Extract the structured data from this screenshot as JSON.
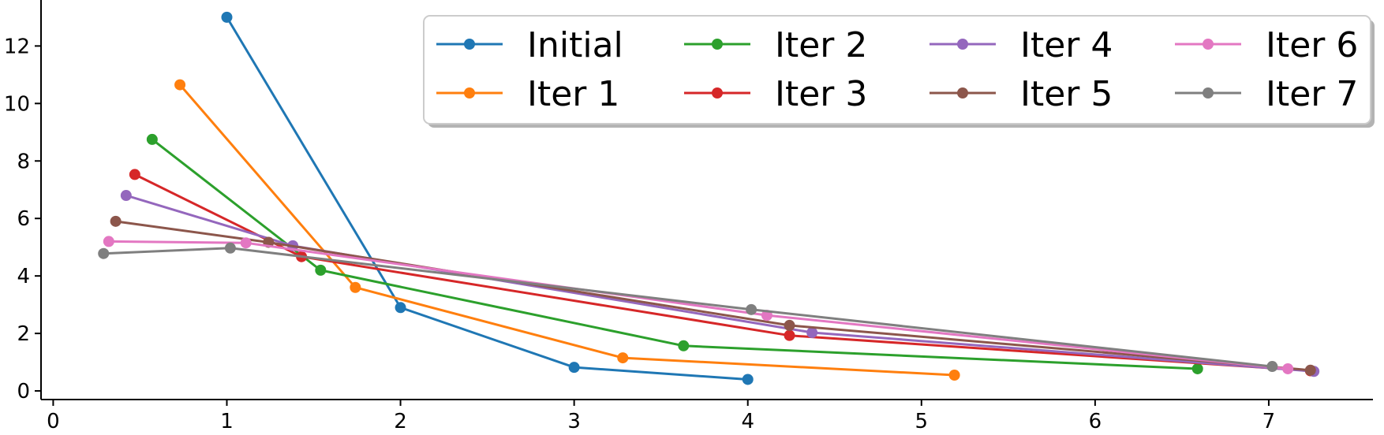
{
  "chart_data": {
    "type": "line",
    "title": "",
    "xlabel": "",
    "ylabel": "",
    "xlim": [
      -0.07,
      7.6
    ],
    "ylim": [
      -0.3,
      13.6
    ],
    "xticks": [
      0,
      1,
      2,
      3,
      4,
      5,
      6,
      7
    ],
    "yticks": [
      0,
      2,
      4,
      6,
      8,
      10,
      12
    ],
    "xtick_labels": [
      "0",
      "1",
      "2",
      "3",
      "4",
      "5",
      "6",
      "7"
    ],
    "ytick_labels": [
      "0",
      "2",
      "4",
      "6",
      "8",
      "10",
      "12"
    ],
    "grid": false,
    "legend": {
      "placement": "top-right",
      "columns": 4
    },
    "series": [
      {
        "name": "Initial",
        "color": "#1f77b4",
        "x": [
          1.0,
          2.0,
          3.0,
          4.0
        ],
        "y": [
          13.0,
          2.9,
          0.82,
          0.4
        ]
      },
      {
        "name": "Iter 1",
        "color": "#ff7f0e",
        "x": [
          0.73,
          1.74,
          3.28,
          5.19
        ],
        "y": [
          10.65,
          3.6,
          1.15,
          0.55
        ]
      },
      {
        "name": "Iter 2",
        "color": "#2ca02c",
        "x": [
          0.57,
          1.54,
          3.63,
          6.59
        ],
        "y": [
          8.75,
          4.2,
          1.57,
          0.77
        ]
      },
      {
        "name": "Iter 3",
        "color": "#d62728",
        "x": [
          0.47,
          1.43,
          4.24,
          7.24
        ],
        "y": [
          7.53,
          4.67,
          1.93,
          0.7
        ]
      },
      {
        "name": "Iter 4",
        "color": "#9467bd",
        "x": [
          0.42,
          1.38,
          4.37,
          7.26
        ],
        "y": [
          6.8,
          5.05,
          2.03,
          0.68
        ]
      },
      {
        "name": "Iter 5",
        "color": "#8c564b",
        "x": [
          0.36,
          1.24,
          4.24,
          7.24
        ],
        "y": [
          5.9,
          5.17,
          2.28,
          0.72
        ]
      },
      {
        "name": "Iter 6",
        "color": "#e377c2",
        "x": [
          0.32,
          1.11,
          4.11,
          7.11
        ],
        "y": [
          5.2,
          5.15,
          2.63,
          0.77
        ]
      },
      {
        "name": "Iter 7",
        "color": "#7f7f7f",
        "x": [
          0.29,
          1.02,
          4.02,
          7.02
        ],
        "y": [
          4.78,
          4.97,
          2.83,
          0.85
        ]
      }
    ]
  }
}
